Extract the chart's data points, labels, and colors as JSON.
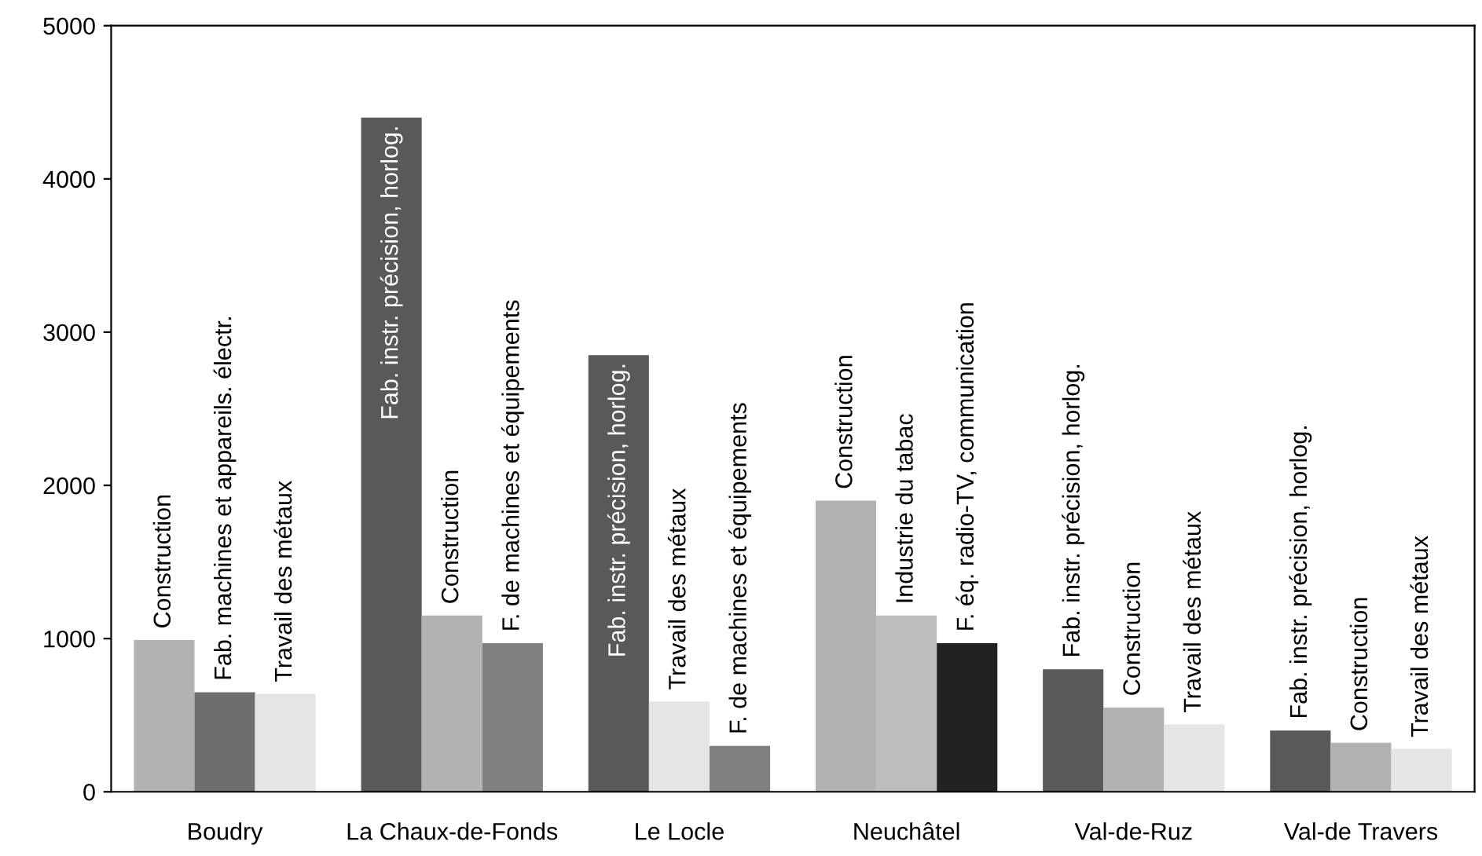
{
  "chart_data": {
    "type": "bar",
    "categories": [
      "Boudry",
      "La Chaux-de-Fonds",
      "Le Locle",
      "Neuchâtel",
      "Val-de-Ruz",
      "Val-de Travers"
    ],
    "series": [
      {
        "values": [
          990,
          4400,
          2850,
          1900,
          800,
          400
        ],
        "colors": [
          "#b2b2b2",
          "#595959",
          "#595959",
          "#b2b2b2",
          "#595959",
          "#595959"
        ],
        "value_labels": [
          "Construction",
          "Fab. instr. précision, horlog.",
          "Fab. instr. précision, horlog.",
          "Construction",
          "Fab. instr. précision, horlog.",
          "Fab. instr. précision, horlog."
        ]
      },
      {
        "values": [
          650,
          1150,
          590,
          1150,
          550,
          320
        ],
        "colors": [
          "#6e6e6e",
          "#b2b2b2",
          "#e5e5e5",
          "#bdbdbd",
          "#b2b2b2",
          "#b2b2b2"
        ],
        "value_labels": [
          "Fab. machines et appareils. électr.",
          "Construction",
          "Travail des métaux",
          "Industrie du tabac",
          "Construction",
          "Construction"
        ]
      },
      {
        "values": [
          640,
          970,
          300,
          970,
          440,
          280
        ],
        "colors": [
          "#e5e5e5",
          "#808080",
          "#808080",
          "#222222",
          "#e5e5e5",
          "#e5e5e5"
        ],
        "value_labels": [
          "Travail des métaux",
          "F. de machines et équipements",
          "F. de machines et équipements",
          "F. éq. radio-TV, communication",
          "Travail des métaux",
          "Travail des métaux"
        ]
      }
    ],
    "ylim": [
      0,
      5000
    ],
    "yticks": [
      0,
      1000,
      2000,
      3000,
      4000,
      5000
    ],
    "grid": false,
    "legend": false
  }
}
